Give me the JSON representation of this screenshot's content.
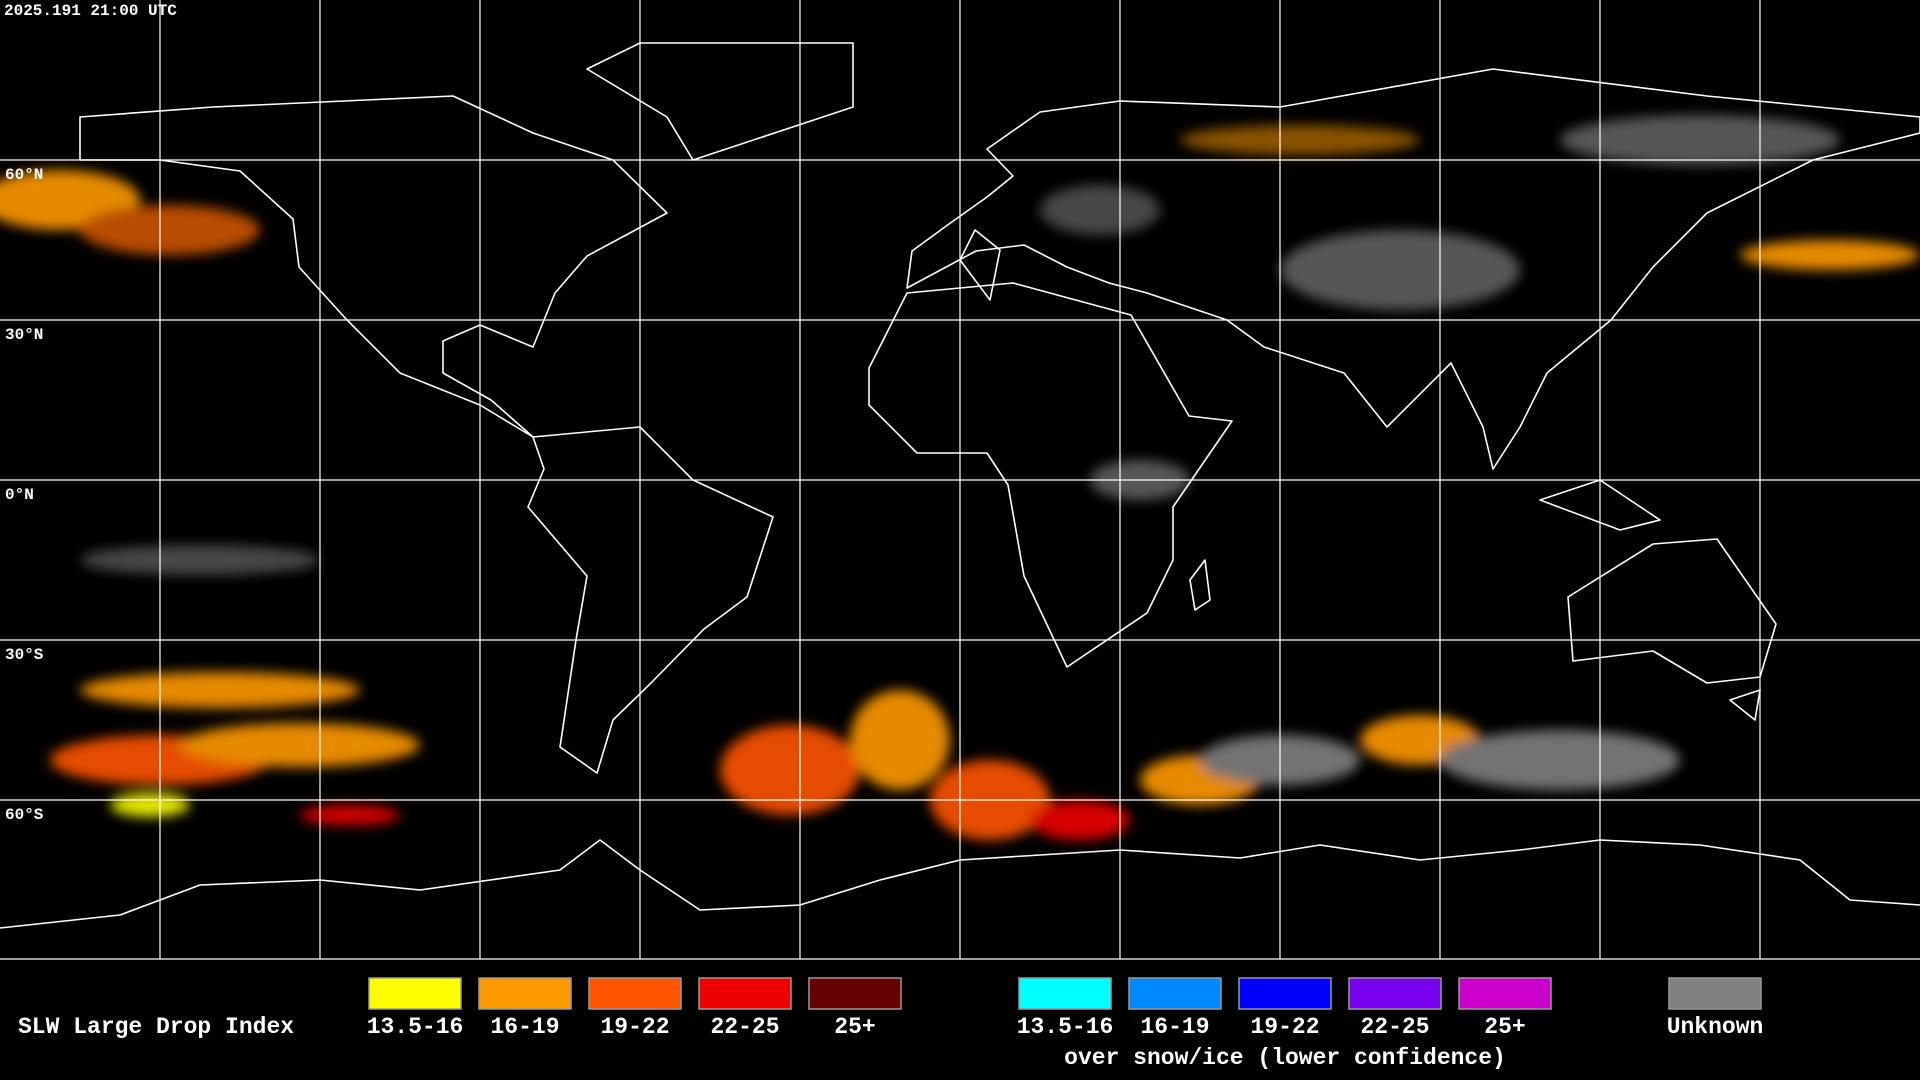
{
  "timestamp": "2025.191 21:00 UTC",
  "latitude_labels": [
    "60°N",
    "30°N",
    "0°N",
    "30°S",
    "60°S"
  ],
  "legend": {
    "title": "SLW Large Drop Index",
    "groups": [
      {
        "items": [
          {
            "label": "13.5-16",
            "color": "#ffff00"
          },
          {
            "label": "16-19",
            "color": "#ff9900"
          },
          {
            "label": "19-22",
            "color": "#ff5500"
          },
          {
            "label": "22-25",
            "color": "#ee0000"
          },
          {
            "label": "25+",
            "color": "#660000"
          }
        ]
      },
      {
        "items": [
          {
            "label": "13.5-16",
            "color": "#00ffff"
          },
          {
            "label": "16-19",
            "color": "#0088ff"
          },
          {
            "label": "19-22",
            "color": "#0000ff"
          },
          {
            "label": "22-25",
            "color": "#7700ee"
          },
          {
            "label": "25+",
            "color": "#cc00cc"
          }
        ],
        "caption": "over snow/ice (lower confidence)"
      },
      {
        "items": [
          {
            "label": "Unknown",
            "color": "#808080"
          }
        ]
      }
    ]
  }
}
